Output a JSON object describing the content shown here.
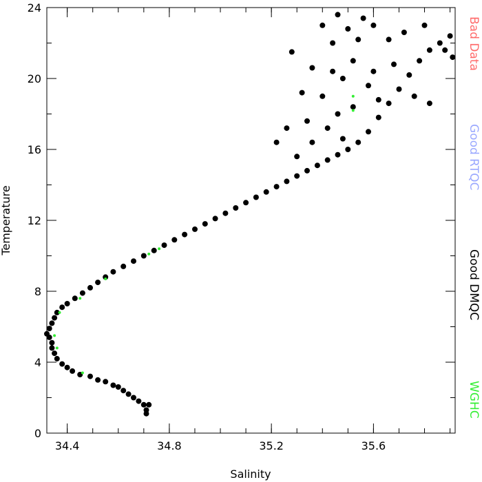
{
  "chart_data": {
    "type": "scatter",
    "xlabel": "Salinity",
    "ylabel": "Temperature",
    "xlim": [
      34.32,
      35.92
    ],
    "ylim": [
      0,
      24
    ],
    "xticks": [
      "34.4",
      "34.8",
      "35.2",
      "35.6"
    ],
    "xtick_values": [
      34.4,
      34.8,
      35.2,
      35.6
    ],
    "yticks": [
      "0",
      "4",
      "8",
      "12",
      "16",
      "20",
      "24"
    ],
    "ytick_values": [
      0,
      4,
      8,
      12,
      16,
      20,
      24
    ],
    "grid": false,
    "legend": {
      "placement": "right-side, vertical text",
      "entries": [
        {
          "label": "Bad Data",
          "color": "#ff6b6b"
        },
        {
          "label": "Good RTQC",
          "color": "#9aa8ff"
        },
        {
          "label": "Good DMQC",
          "color": "#000000"
        },
        {
          "label": "WGHC",
          "color": "#33ee33"
        }
      ]
    },
    "series": [
      {
        "name": "Good DMQC",
        "color": "#000000",
        "points": [
          [
            34.71,
            1.1
          ],
          [
            34.71,
            1.3
          ],
          [
            34.72,
            1.6
          ],
          [
            34.7,
            1.6
          ],
          [
            34.68,
            1.8
          ],
          [
            34.66,
            2.0
          ],
          [
            34.64,
            2.2
          ],
          [
            34.62,
            2.4
          ],
          [
            34.6,
            2.6
          ],
          [
            34.58,
            2.7
          ],
          [
            34.55,
            2.9
          ],
          [
            34.52,
            3.0
          ],
          [
            34.49,
            3.2
          ],
          [
            34.45,
            3.3
          ],
          [
            34.42,
            3.5
          ],
          [
            34.4,
            3.7
          ],
          [
            34.38,
            3.9
          ],
          [
            34.36,
            4.2
          ],
          [
            34.35,
            4.5
          ],
          [
            34.34,
            4.8
          ],
          [
            34.34,
            5.1
          ],
          [
            34.33,
            5.4
          ],
          [
            34.32,
            5.6
          ],
          [
            34.33,
            5.9
          ],
          [
            34.34,
            6.2
          ],
          [
            34.35,
            6.5
          ],
          [
            34.36,
            6.8
          ],
          [
            34.38,
            7.1
          ],
          [
            34.4,
            7.3
          ],
          [
            34.43,
            7.6
          ],
          [
            34.46,
            7.9
          ],
          [
            34.49,
            8.2
          ],
          [
            34.52,
            8.5
          ],
          [
            34.55,
            8.8
          ],
          [
            34.58,
            9.1
          ],
          [
            34.62,
            9.4
          ],
          [
            34.66,
            9.7
          ],
          [
            34.7,
            10.0
          ],
          [
            34.74,
            10.3
          ],
          [
            34.78,
            10.6
          ],
          [
            34.82,
            10.9
          ],
          [
            34.86,
            11.2
          ],
          [
            34.9,
            11.5
          ],
          [
            34.94,
            11.8
          ],
          [
            34.98,
            12.1
          ],
          [
            35.02,
            12.4
          ],
          [
            35.06,
            12.7
          ],
          [
            35.1,
            13.0
          ],
          [
            35.14,
            13.3
          ],
          [
            35.18,
            13.6
          ],
          [
            35.22,
            13.9
          ],
          [
            35.26,
            14.2
          ],
          [
            35.3,
            14.5
          ],
          [
            35.34,
            14.8
          ],
          [
            35.38,
            15.1
          ],
          [
            35.42,
            15.4
          ],
          [
            35.46,
            15.7
          ],
          [
            35.5,
            16.0
          ],
          [
            35.54,
            16.4
          ],
          [
            35.58,
            17.0
          ],
          [
            35.62,
            17.8
          ],
          [
            35.66,
            18.6
          ],
          [
            35.7,
            19.4
          ],
          [
            35.74,
            20.2
          ],
          [
            35.78,
            21.0
          ],
          [
            35.82,
            21.6
          ],
          [
            35.86,
            22.0
          ],
          [
            35.9,
            22.4
          ],
          [
            35.3,
            15.6
          ],
          [
            35.36,
            16.4
          ],
          [
            35.42,
            17.2
          ],
          [
            35.46,
            18.0
          ],
          [
            35.4,
            19.0
          ],
          [
            35.48,
            20.0
          ],
          [
            35.52,
            21.0
          ],
          [
            35.44,
            22.0
          ],
          [
            35.5,
            22.8
          ],
          [
            35.56,
            23.4
          ],
          [
            35.6,
            23.0
          ],
          [
            35.66,
            22.2
          ],
          [
            35.72,
            22.6
          ],
          [
            35.8,
            23.0
          ],
          [
            35.28,
            21.5
          ],
          [
            35.32,
            19.2
          ],
          [
            35.36,
            20.6
          ],
          [
            35.26,
            17.2
          ],
          [
            35.58,
            19.6
          ],
          [
            35.62,
            18.8
          ],
          [
            35.68,
            20.8
          ],
          [
            35.54,
            22.2
          ],
          [
            35.46,
            23.6
          ],
          [
            35.76,
            19.0
          ],
          [
            35.82,
            18.6
          ],
          [
            35.88,
            21.6
          ],
          [
            35.91,
            21.2
          ],
          [
            35.22,
            16.4
          ],
          [
            35.34,
            17.6
          ],
          [
            35.48,
            16.6
          ],
          [
            35.52,
            18.4
          ],
          [
            35.4,
            23.0
          ],
          [
            35.44,
            20.4
          ],
          [
            35.6,
            20.4
          ]
        ]
      },
      {
        "name": "WGHC",
        "color": "#33ee33",
        "points": [
          [
            34.46,
            3.4
          ],
          [
            34.36,
            4.8
          ],
          [
            34.35,
            5.5
          ],
          [
            34.37,
            6.8
          ],
          [
            34.45,
            7.6
          ],
          [
            34.55,
            8.7
          ],
          [
            34.72,
            10.1
          ],
          [
            34.76,
            10.4
          ],
          [
            35.52,
            18.2
          ],
          [
            35.52,
            19.0
          ]
        ]
      }
    ]
  }
}
